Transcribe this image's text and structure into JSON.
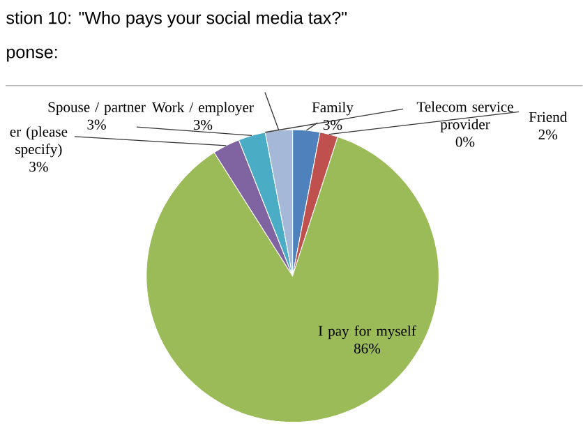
{
  "chart_data": {
    "type": "pie",
    "title": "stion 10: \"Who pays your social media tax?\"",
    "subtitle": "ponse:",
    "categories": [
      "Family",
      "Friend",
      "I pay for myself",
      "er (please specify)",
      "Spouse / partner",
      "Telecom service provider",
      "Work / employer"
    ],
    "values": [
      3,
      2,
      86,
      3,
      3,
      0,
      3
    ],
    "value_labels": [
      "3%",
      "2%",
      "86%",
      "3%",
      "3%",
      "0%",
      "3%"
    ],
    "colors": [
      "#4f81bd",
      "#c0504d",
      "#9bbb59",
      "#8064a2",
      "#4bacc6",
      "#f79646",
      "#a5b8d8"
    ]
  }
}
